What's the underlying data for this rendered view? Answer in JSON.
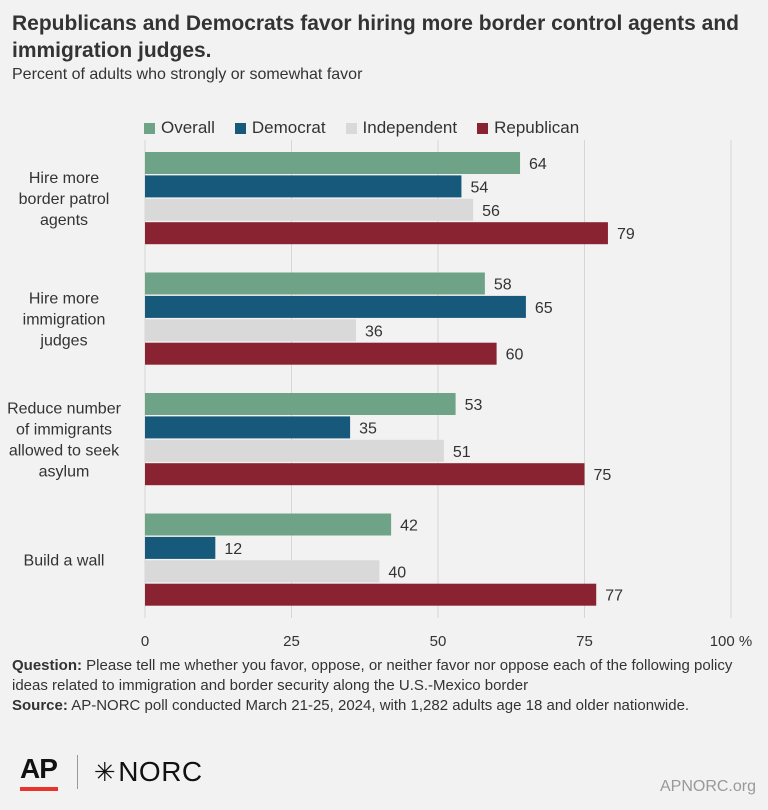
{
  "title": "Republicans and Democrats favor hiring more border control agents and immigration judges.",
  "subtitle": "Percent of adults who strongly or somewhat favor",
  "legend": [
    {
      "label": "Overall",
      "color": "#6fa388"
    },
    {
      "label": "Democrat",
      "color": "#17597a"
    },
    {
      "label": "Independent",
      "color": "#d9d9d9"
    },
    {
      "label": "Republican",
      "color": "#8a2331"
    }
  ],
  "chart_data": {
    "type": "bar",
    "orientation": "horizontal",
    "categories": [
      [
        "Hire more",
        "border patrol",
        "agents"
      ],
      [
        "Hire more",
        "immigration",
        "judges"
      ],
      [
        "Reduce number",
        "of immigrants",
        "allowed to seek",
        "asylum"
      ],
      [
        "Build a wall"
      ]
    ],
    "series": [
      {
        "name": "Overall",
        "values": [
          64,
          58,
          53,
          42
        ]
      },
      {
        "name": "Democrat",
        "values": [
          54,
          65,
          35,
          12
        ]
      },
      {
        "name": "Independent",
        "values": [
          56,
          36,
          51,
          40
        ]
      },
      {
        "name": "Republican",
        "values": [
          79,
          60,
          75,
          77
        ]
      }
    ],
    "xlim": [
      0,
      100
    ],
    "x_ticks": [
      "0",
      "25",
      "50",
      "75",
      "100 %"
    ],
    "x_tick_values": [
      0,
      25,
      50,
      75,
      100
    ],
    "grid": true,
    "legend_position": "top"
  },
  "footer": {
    "question_label": "Question:",
    "question_text": "Please tell me whether you favor, oppose, or neither favor nor oppose each of the following policy ideas related to immigration and border security along the U.S.-Mexico border",
    "source_label": "Source:",
    "source_text": "AP-NORC poll conducted March 21-25, 2024, with 1,282 adults age 18 and older nationwide."
  },
  "logos": {
    "ap": "AP",
    "norc": "NORC",
    "norc_icon": "asterisk-icon"
  },
  "site": "APNORC.org"
}
